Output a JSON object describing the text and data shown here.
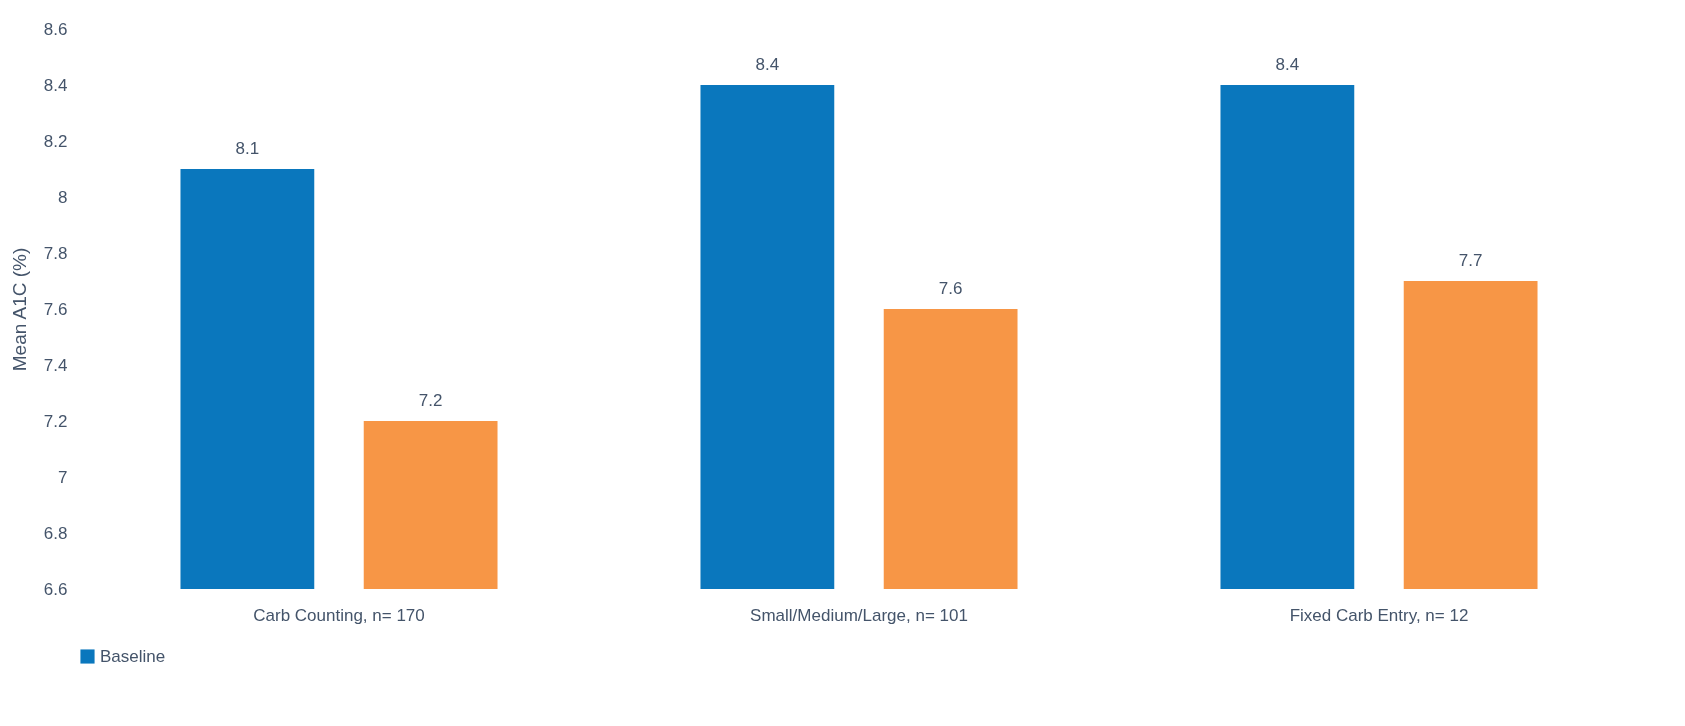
{
  "chart_data": {
    "type": "bar",
    "ylabel": "Mean A1C (%)",
    "categories": [
      "Carb Counting, n= 170",
      "Small/Medium/Large, n= 101",
      "Fixed Carb Entry, n= 12"
    ],
    "series": [
      {
        "name": "Baseline",
        "color": "#0a77bd",
        "values": [
          8.1,
          8.4,
          8.4
        ]
      },
      {
        "color": "#f79646",
        "values": [
          7.2,
          7.6,
          7.7
        ]
      }
    ],
    "ylim": [
      6.6,
      8.6
    ],
    "yticks": [
      6.6,
      6.8,
      7,
      7.2,
      7.4,
      7.6,
      7.8,
      8,
      8.2,
      8.4,
      8.6
    ],
    "data_labels": true,
    "legend": "bottom",
    "grid": false
  }
}
